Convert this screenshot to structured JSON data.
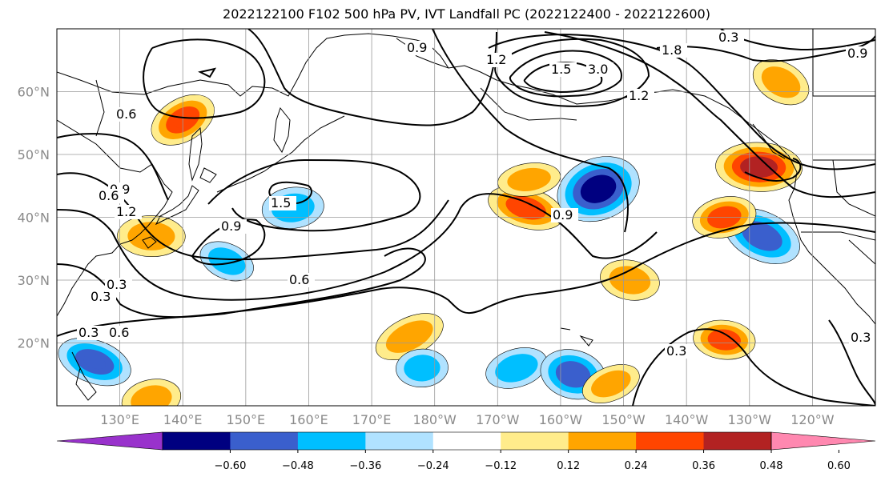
{
  "title": "2022122100 F102 500 hPa PV, IVT Landfall PC (2022122400 - 2022122600)",
  "colors": {
    "levels": [
      "#9932cc",
      "#000080",
      "#3a5fcd",
      "#00bfff",
      "#b0e2ff",
      "#ffffff",
      "#ffec8b",
      "#ffa500",
      "#ff4500",
      "#b22222",
      "#ff88b0"
    ],
    "contour": "#000000",
    "grid": "#9a9a9a",
    "coast": "#000000"
  },
  "chart_data": {
    "type": "heatmap",
    "title": "2022122100 F102 500 hPa PV, IVT Landfall PC (2022122400 - 2022122600)",
    "map_extent": {
      "lon": [
        120,
        250
      ],
      "lat": [
        10,
        70
      ]
    },
    "x_ticks": [
      "130°E",
      "140°E",
      "150°E",
      "160°E",
      "170°E",
      "180°W",
      "170°W",
      "160°W",
      "150°W",
      "140°W",
      "130°W",
      "120°W"
    ],
    "y_ticks": [
      "20°N",
      "30°N",
      "40°N",
      "50°N",
      "60°N"
    ],
    "colorbar": {
      "ticks": [
        "−0.60",
        "−0.48",
        "−0.36",
        "−0.24",
        "−0.12",
        "0.12",
        "0.24",
        "0.36",
        "0.48",
        "0.60"
      ],
      "extend": "both"
    },
    "contour_labels": [
      "0.3",
      "0.6",
      "0.9",
      "0.6",
      "1.2",
      "1.5",
      "0.9",
      "0.6",
      "0.3",
      "0.3",
      "0.6",
      "0.9",
      "1.2",
      "1.5",
      "1.8",
      "3.0",
      "1.2",
      "0.9",
      "0.3",
      "0.3",
      "0.3",
      "0.9"
    ],
    "shaded_regions": [
      {
        "lon": 140,
        "lat": 55.5,
        "value": 0.42
      },
      {
        "lon": 157.5,
        "lat": 41.5,
        "value": -0.3
      },
      {
        "lon": 194.5,
        "lat": 41.5,
        "value": 0.38
      },
      {
        "lon": 206,
        "lat": 44.5,
        "value": -0.58
      },
      {
        "lon": 231.5,
        "lat": 48,
        "value": 0.52
      },
      {
        "lon": 232,
        "lat": 37,
        "value": -0.4
      },
      {
        "lon": 226,
        "lat": 40,
        "value": 0.38
      },
      {
        "lon": 211,
        "lat": 30,
        "value": 0.28
      },
      {
        "lon": 176,
        "lat": 21,
        "value": 0.34
      },
      {
        "lon": 178,
        "lat": 16,
        "value": -0.26
      },
      {
        "lon": 126,
        "lat": 17,
        "value": -0.42
      },
      {
        "lon": 193,
        "lat": 16,
        "value": -0.26
      },
      {
        "lon": 226,
        "lat": 20.5,
        "value": 0.36
      },
      {
        "lon": 235,
        "lat": 61.5,
        "value": 0.28
      },
      {
        "lon": 195,
        "lat": 46,
        "value": 0.26
      },
      {
        "lon": 202,
        "lat": 15,
        "value": -0.4
      },
      {
        "lon": 208,
        "lat": 13.5,
        "value": 0.28
      },
      {
        "lon": 135,
        "lat": 37,
        "value": 0.3
      },
      {
        "lon": 147,
        "lat": 33,
        "value": -0.3
      },
      {
        "lon": 135,
        "lat": 11,
        "value": 0.28
      }
    ],
    "grid": true
  }
}
